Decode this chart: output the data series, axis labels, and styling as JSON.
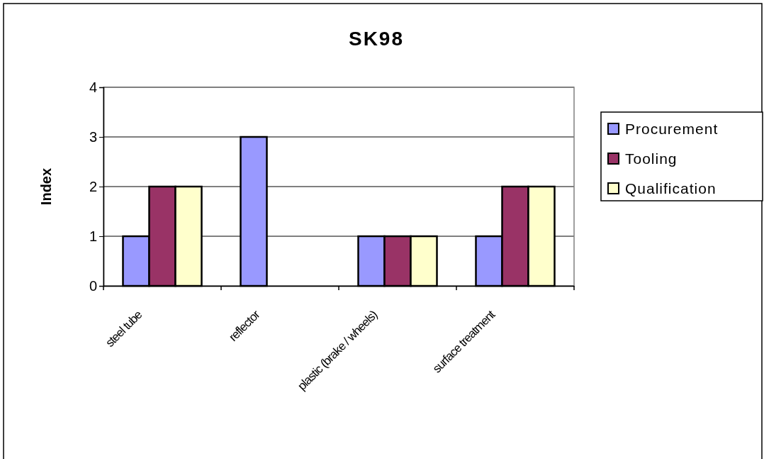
{
  "chart_data": {
    "type": "bar",
    "title": "SK98",
    "ylabel": "Index",
    "categories": [
      "steel tube",
      "reflector",
      "plastic (brake / wheels)",
      "surface treatment"
    ],
    "series": [
      {
        "name": "Procurement",
        "color": "#9999ff",
        "values": [
          1,
          3,
          1,
          1
        ]
      },
      {
        "name": "Tooling",
        "color": "#993366",
        "values": [
          2,
          null,
          1,
          2
        ]
      },
      {
        "name": "Qualification",
        "color": "#ffffcc",
        "values": [
          2,
          null,
          1,
          2
        ]
      }
    ],
    "ylim": [
      0,
      4
    ],
    "yticks": [
      0,
      1,
      2,
      3,
      4
    ],
    "grid": "y",
    "legend": "right"
  }
}
